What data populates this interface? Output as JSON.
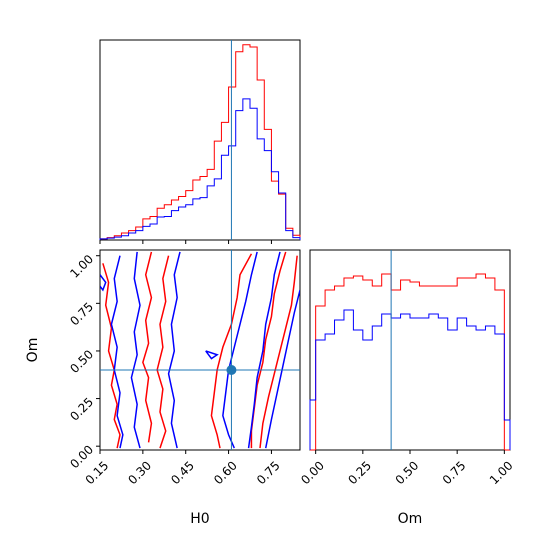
{
  "chart_data": [
    {
      "type": "histogram",
      "panel": "H0 marginal",
      "xlabel": "",
      "ylabel": "",
      "xlim": [
        0.15,
        0.85
      ],
      "xticks": [
        0.15,
        0.3,
        0.45,
        0.6,
        0.75
      ],
      "truth": 0.61,
      "bin_edges": [
        0.15,
        0.175,
        0.2,
        0.225,
        0.25,
        0.275,
        0.3,
        0.325,
        0.35,
        0.375,
        0.4,
        0.425,
        0.45,
        0.475,
        0.5,
        0.525,
        0.55,
        0.575,
        0.6,
        0.625,
        0.65,
        0.675,
        0.7,
        0.725,
        0.75,
        0.775,
        0.8,
        0.825,
        0.85
      ],
      "series": [
        {
          "color": "#ff0000",
          "values": [
            0.005,
            0.01,
            0.018,
            0.03,
            0.04,
            0.055,
            0.09,
            0.1,
            0.135,
            0.15,
            0.17,
            0.185,
            0.21,
            0.255,
            0.27,
            0.3,
            0.42,
            0.5,
            0.65,
            0.8,
            0.83,
            0.82,
            0.68,
            0.47,
            0.25,
            0.195,
            0.05,
            0.02
          ]
        },
        {
          "color": "#0000ff",
          "values": [
            0.005,
            0.008,
            0.012,
            0.018,
            0.03,
            0.04,
            0.058,
            0.068,
            0.098,
            0.1,
            0.125,
            0.14,
            0.15,
            0.175,
            0.18,
            0.23,
            0.26,
            0.36,
            0.4,
            0.55,
            0.6,
            0.56,
            0.43,
            0.38,
            0.29,
            0.2,
            0.04,
            0.01
          ]
        }
      ]
    },
    {
      "type": "contour",
      "panel": "H0 vs Om joint",
      "xlabel": "H0",
      "ylabel": "Om",
      "xlim": [
        0.15,
        0.85
      ],
      "ylim": [
        -0.02,
        1.03
      ],
      "xticks": [
        "0.15",
        "0.30",
        "0.45",
        "0.60",
        "0.75"
      ],
      "yticks": [
        "0.00",
        "0.25",
        "0.50",
        "0.75",
        "1.00"
      ],
      "truth": {
        "x": 0.61,
        "y": 0.4
      },
      "series": [
        {
          "color": "#ff0000",
          "contours": [
            {
              "x": [
                0.16,
                0.18,
                0.17,
                0.19,
                0.18,
                0.2,
                0.19,
                0.21,
                0.2,
                0.22,
                0.21
              ],
              "y": [
                0.96,
                0.86,
                0.74,
                0.62,
                0.5,
                0.4,
                0.32,
                0.22,
                0.14,
                0.06,
                -0.01
              ]
            },
            {
              "x": [
                0.33,
                0.31,
                0.33,
                0.31,
                0.32,
                0.3,
                0.32,
                0.31,
                0.33,
                0.32
              ],
              "y": [
                1.02,
                0.9,
                0.78,
                0.66,
                0.54,
                0.44,
                0.36,
                0.24,
                0.12,
                0.02
              ]
            },
            {
              "x": [
                0.39,
                0.37,
                0.38,
                0.36,
                0.37,
                0.35,
                0.37,
                0.36,
                0.38,
                0.36
              ],
              "y": [
                1.0,
                0.88,
                0.76,
                0.64,
                0.52,
                0.4,
                0.3,
                0.18,
                0.08,
                -0.01
              ]
            },
            {
              "x": [
                0.68,
                0.64,
                0.63,
                0.61,
                0.58,
                0.56,
                0.55,
                0.54,
                0.56,
                0.57
              ],
              "y": [
                1.01,
                0.9,
                0.78,
                0.64,
                0.52,
                0.4,
                0.28,
                0.16,
                0.06,
                -0.01
              ]
            },
            {
              "x": [
                0.8,
                0.78,
                0.76,
                0.75,
                0.73,
                0.72,
                0.7,
                0.69,
                0.68,
                0.68
              ],
              "y": [
                1.02,
                0.92,
                0.8,
                0.68,
                0.56,
                0.44,
                0.32,
                0.2,
                0.08,
                -0.01
              ]
            },
            {
              "x": [
                0.84,
                0.83,
                0.82,
                0.8,
                0.78,
                0.76,
                0.74,
                0.72,
                0.71
              ],
              "y": [
                1.0,
                0.86,
                0.74,
                0.62,
                0.5,
                0.38,
                0.26,
                0.12,
                -0.01
              ]
            }
          ]
        },
        {
          "color": "#0000ff",
          "contours": [
            {
              "x": [
                0.22,
                0.2,
                0.21,
                0.19,
                0.21,
                0.2,
                0.22,
                0.21,
                0.23,
                0.22
              ],
              "y": [
                1.0,
                0.88,
                0.76,
                0.64,
                0.52,
                0.4,
                0.28,
                0.16,
                0.06,
                -0.01
              ]
            },
            {
              "x": [
                0.28,
                0.27,
                0.29,
                0.27,
                0.28,
                0.26,
                0.28,
                0.27,
                0.29
              ],
              "y": [
                1.02,
                0.88,
                0.74,
                0.6,
                0.48,
                0.36,
                0.22,
                0.1,
                -0.01
              ]
            },
            {
              "x": [
                0.43,
                0.41,
                0.42,
                0.4,
                0.41,
                0.39,
                0.41,
                0.4,
                0.42
              ],
              "y": [
                1.02,
                0.9,
                0.78,
                0.64,
                0.5,
                0.38,
                0.24,
                0.12,
                -0.01
              ]
            },
            {
              "x": [
                0.7,
                0.68,
                0.66,
                0.64,
                0.62,
                0.6,
                0.59,
                0.58,
                0.6,
                0.62
              ],
              "y": [
                1.02,
                0.9,
                0.76,
                0.64,
                0.52,
                0.4,
                0.28,
                0.16,
                0.06,
                -0.01
              ]
            },
            {
              "x": [
                0.78,
                0.76,
                0.75,
                0.73,
                0.72,
                0.7,
                0.69,
                0.68,
                0.67
              ],
              "y": [
                1.02,
                0.9,
                0.78,
                0.64,
                0.5,
                0.36,
                0.22,
                0.1,
                -0.01
              ]
            },
            {
              "x": [
                0.85,
                0.83,
                0.81,
                0.79,
                0.77,
                0.75,
                0.73
              ],
              "y": [
                0.82,
                0.7,
                0.56,
                0.42,
                0.28,
                0.14,
                -0.01
              ]
            },
            {
              "x": [
                0.15,
                0.17,
                0.16,
                0.15
              ],
              "y": [
                0.9,
                0.86,
                0.82,
                0.84
              ]
            },
            {
              "x": [
                0.52,
                0.56,
                0.54,
                0.52
              ],
              "y": [
                0.5,
                0.48,
                0.46,
                0.5
              ]
            }
          ]
        }
      ]
    },
    {
      "type": "histogram",
      "panel": "Om marginal",
      "xlabel": "Om",
      "ylabel": "",
      "xlim": [
        -0.03,
        1.03
      ],
      "xticks": [
        "0.00",
        "0.25",
        "0.50",
        "0.75",
        "1.00"
      ],
      "truth": 0.4,
      "bin_edges": [
        -0.03,
        0.0,
        0.05,
        0.1,
        0.15,
        0.2,
        0.25,
        0.3,
        0.35,
        0.4,
        0.45,
        0.5,
        0.55,
        0.6,
        0.65,
        0.7,
        0.75,
        0.8,
        0.85,
        0.9,
        0.95,
        1.0,
        1.03
      ],
      "series": [
        {
          "color": "#ff0000",
          "values": [
            0.0,
            0.72,
            0.8,
            0.82,
            0.86,
            0.87,
            0.85,
            0.82,
            0.88,
            0.8,
            0.85,
            0.84,
            0.82,
            0.82,
            0.82,
            0.82,
            0.86,
            0.86,
            0.88,
            0.86,
            0.8,
            0.0
          ]
        },
        {
          "color": "#0000ff",
          "values": [
            0.25,
            0.55,
            0.58,
            0.65,
            0.7,
            0.6,
            0.55,
            0.62,
            0.68,
            0.66,
            0.68,
            0.66,
            0.66,
            0.68,
            0.66,
            0.6,
            0.66,
            0.62,
            0.6,
            0.62,
            0.58,
            0.15
          ]
        }
      ]
    }
  ],
  "axis_labels": {
    "joint_x": "H0",
    "joint_y": "Om",
    "om_x": "Om"
  },
  "style": {
    "red": "#ff0000",
    "blue": "#0000ff",
    "truth_color": "#1f77b4"
  }
}
